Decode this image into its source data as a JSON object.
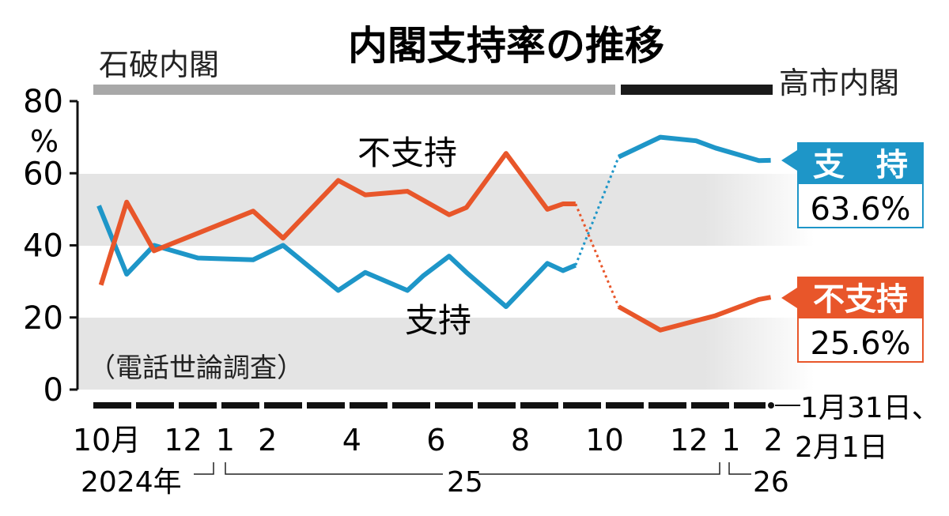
{
  "colors": {
    "support": "#1e96c8",
    "disapproval": "#e8562a",
    "band": "#e4e4e4",
    "ishiba": "#a8a8a8",
    "takaichi": "#1a1a1a"
  },
  "chart_data": {
    "type": "line",
    "title": "内閣支持率の推移",
    "note": "（電話世論調査）",
    "ylabel": "%",
    "ylim": [
      0,
      80
    ],
    "yticks": [
      "0",
      "20",
      "40",
      "60",
      "80"
    ],
    "x_unit": "months since Oct 2024",
    "xlim": [
      0,
      16
    ],
    "xticks": [
      {
        "x": 0,
        "label": "10月"
      },
      {
        "x": 2,
        "label": "12"
      },
      {
        "x": 3,
        "label": "1"
      },
      {
        "x": 4,
        "label": "2"
      },
      {
        "x": 6,
        "label": "4"
      },
      {
        "x": 8,
        "label": "6"
      },
      {
        "x": 10,
        "label": "8"
      },
      {
        "x": 12,
        "label": "10"
      },
      {
        "x": 14,
        "label": "12"
      },
      {
        "x": 15,
        "label": "1"
      },
      {
        "x": 16,
        "label": "2"
      }
    ],
    "years": [
      "2024年",
      "25",
      "26"
    ],
    "last_date": "1月31日、",
    "last_date2": "2月1日",
    "cabinets": [
      {
        "name": "石破内閣",
        "from": 0,
        "to": 12
      },
      {
        "name": "高市内閣",
        "from": 12,
        "to": 16
      }
    ],
    "series": [
      {
        "name": "支持",
        "label_inline": "支持",
        "legend": "支　持",
        "latest": "63.6%",
        "x": [
          0,
          0.66,
          1.31,
          2.35,
          3.66,
          4.37,
          5.68,
          6.32,
          7.32,
          7.69,
          8.31,
          8.72,
          9.66,
          10.64,
          11.01,
          11.31,
          12.33,
          13.32,
          14.17,
          14.63,
          15.66,
          15.94
        ],
        "y": [
          51,
          32,
          40,
          36.5,
          36,
          40,
          27.5,
          32.5,
          27.5,
          31.5,
          37,
          32.5,
          23,
          35,
          33,
          34.5,
          64.5,
          70,
          69,
          67,
          63.5,
          63.6
        ],
        "gap_after_index": 15
      },
      {
        "name": "不支持",
        "label_inline": "不支持",
        "legend": "不支持",
        "latest": "25.6%",
        "x": [
          0.05,
          0.66,
          1.31,
          3.66,
          4.37,
          5.68,
          6.32,
          7.32,
          8.31,
          8.72,
          9.66,
          10.64,
          11.01,
          11.31,
          12.33,
          13.32,
          14.63,
          15.66,
          15.94
        ],
        "y": [
          29,
          52,
          38.5,
          49.5,
          42,
          58,
          54,
          55,
          48.5,
          50.5,
          65.5,
          50,
          51.5,
          51.5,
          23,
          16.5,
          20.5,
          25,
          25.6
        ],
        "gap_after_index": 13
      }
    ]
  }
}
